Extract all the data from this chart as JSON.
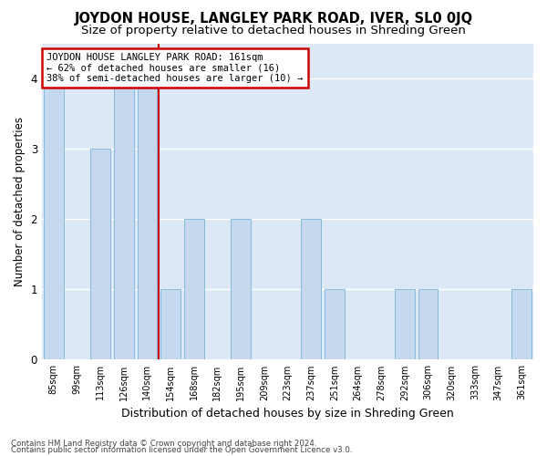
{
  "title": "JOYDON HOUSE, LANGLEY PARK ROAD, IVER, SL0 0JQ",
  "subtitle": "Size of property relative to detached houses in Shreding Green",
  "xlabel": "Distribution of detached houses by size in Shreding Green",
  "ylabel": "Number of detached properties",
  "categories": [
    "85sqm",
    "99sqm",
    "113sqm",
    "126sqm",
    "140sqm",
    "154sqm",
    "168sqm",
    "182sqm",
    "195sqm",
    "209sqm",
    "223sqm",
    "237sqm",
    "251sqm",
    "264sqm",
    "278sqm",
    "292sqm",
    "306sqm",
    "320sqm",
    "333sqm",
    "347sqm",
    "361sqm"
  ],
  "values": [
    4,
    0,
    3,
    4,
    4,
    1,
    2,
    0,
    2,
    0,
    0,
    2,
    1,
    0,
    0,
    1,
    1,
    0,
    0,
    0,
    1
  ],
  "bar_color": "#c5d8ed",
  "bar_edge_color": "#7ab4d8",
  "highlight_index": 5,
  "annotation_line1": "JOYDON HOUSE LANGLEY PARK ROAD: 161sqm",
  "annotation_line2": "← 62% of detached houses are smaller (16)",
  "annotation_line3": "38% of semi-detached houses are larger (10) →",
  "annotation_box_color": "#ffffff",
  "annotation_box_edge": "#cc0000",
  "red_line_color": "#cc0000",
  "ylim": [
    0,
    4.5
  ],
  "yticks": [
    0,
    1,
    2,
    3,
    4
  ],
  "footer1": "Contains HM Land Registry data © Crown copyright and database right 2024.",
  "footer2": "Contains public sector information licensed under the Open Government Licence v3.0.",
  "bg_color": "#dce8f5",
  "fig_color": "#ffffff",
  "title_fontsize": 10.5,
  "subtitle_fontsize": 9.5,
  "ylabel_fontsize": 8.5,
  "xlabel_fontsize": 9
}
